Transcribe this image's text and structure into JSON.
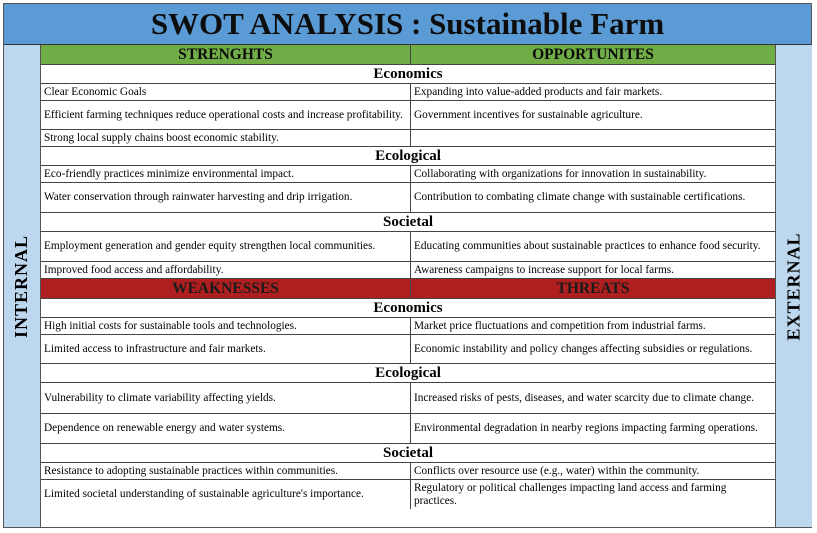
{
  "title": "SWOT ANALYSIS : Sustainable Farm",
  "side_labels": {
    "left": "INTERNAL",
    "right": "EXTERNAL"
  },
  "colors": {
    "title_bg": "#5b9bd5",
    "side_bg": "#bdd7ee",
    "strengths_header_bg": "#70ad47",
    "weaknesses_header_bg": "#b01f1f"
  },
  "top": {
    "left_header": "STRENGHTS",
    "right_header": "OPPORTUNITES",
    "sections": [
      {
        "name": "Economics",
        "rows": [
          {
            "left": "Clear Economic Goals",
            "right": "Expanding into value-added products and fair markets."
          },
          {
            "left": "Efficient farming techniques reduce operational costs and increase profitability.",
            "right": "Government incentives for sustainable agriculture."
          },
          {
            "left": "Strong local supply chains boost economic stability.",
            "right": ""
          }
        ]
      },
      {
        "name": "Ecological",
        "rows": [
          {
            "left": "Eco-friendly practices minimize environmental impact.",
            "right": "Collaborating with organizations for innovation in sustainability."
          },
          {
            "left": "Water conservation through rainwater harvesting and drip irrigation.",
            "right": "Contribution to combating climate change with sustainable certifications."
          }
        ]
      },
      {
        "name": "Societal",
        "rows": [
          {
            "left": "Employment generation and gender equity strengthen local communities.",
            "right": "Educating communities about sustainable practices to enhance food security."
          },
          {
            "left": "Improved food access and affordability.",
            "right": "Awareness campaigns to increase support for local farms."
          }
        ]
      }
    ]
  },
  "bottom": {
    "left_header": "WEAKNESSES",
    "right_header": "THREATS",
    "sections": [
      {
        "name": "Economics",
        "rows": [
          {
            "left": "High initial costs for sustainable tools and technologies.",
            "right": "Market price fluctuations and competition from industrial farms."
          },
          {
            "left": "Limited access to infrastructure and fair markets.",
            "right": "Economic instability and policy changes affecting subsidies or regulations."
          }
        ]
      },
      {
        "name": "Ecological",
        "rows": [
          {
            "left": "Vulnerability to climate variability affecting yields.",
            "right": "Increased risks of pests, diseases, and water scarcity due to climate change."
          },
          {
            "left": "Dependence on renewable energy and water systems.",
            "right": "Environmental degradation in nearby regions impacting farming operations."
          }
        ]
      },
      {
        "name": "Societal",
        "rows": [
          {
            "left": "Resistance to adopting sustainable practices within communities.",
            "right": "Conflicts over resource use (e.g., water) within the community."
          },
          {
            "left": "Limited societal understanding of sustainable agriculture's importance.",
            "right": "Regulatory or political challenges impacting land access and farming practices."
          }
        ]
      }
    ]
  }
}
